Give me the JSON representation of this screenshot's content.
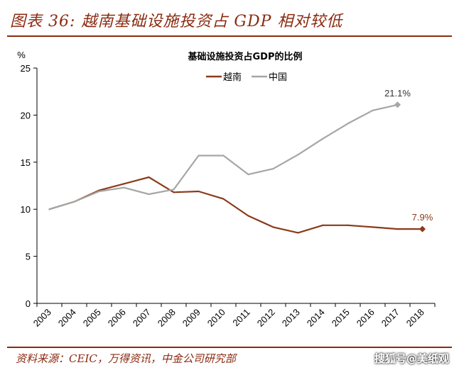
{
  "header": {
    "title": "图表 36: 越南基础设施投资占 GDP 相对较低"
  },
  "footer": {
    "source": "资料来源：CEIC，万得资讯，中金公司研究部",
    "watermark": "搜狐号@美纸观"
  },
  "colors": {
    "vietnam": "#8B3A1A",
    "china": "#A6A6A6",
    "accent": "#8b2a10"
  },
  "chart_data": {
    "type": "line",
    "title": "基础设施投资占GDP的比例",
    "ylabel": "%",
    "xlabel": "",
    "ylim": [
      0,
      25
    ],
    "yticks": [
      0,
      5,
      10,
      15,
      20,
      25
    ],
    "categories": [
      "2003",
      "2004",
      "2005",
      "2006",
      "2007",
      "2008",
      "2009",
      "2010",
      "2011",
      "2012",
      "2013",
      "2014",
      "2015",
      "2016",
      "2017",
      "2018"
    ],
    "legend_position": "top-center",
    "grid": false,
    "series": [
      {
        "name": "越南",
        "color": "#8B3A1A",
        "marker": "diamond-end",
        "x": [
          2003,
          2004,
          2005,
          2006,
          2007,
          2008,
          2009,
          2010,
          2011,
          2012,
          2013,
          2014,
          2015,
          2016,
          2017,
          2018
        ],
        "values": [
          10.0,
          10.8,
          12.0,
          12.7,
          13.4,
          11.8,
          11.9,
          11.1,
          9.3,
          8.1,
          7.5,
          8.3,
          8.3,
          8.1,
          7.9,
          7.9
        ],
        "end_label": "7.9%"
      },
      {
        "name": "中国",
        "color": "#A6A6A6",
        "marker": "diamond-end",
        "x": [
          2003,
          2004,
          2005,
          2006,
          2007,
          2008,
          2009,
          2010,
          2011,
          2012,
          2013,
          2014,
          2015,
          2016,
          2017
        ],
        "values": [
          10.0,
          10.8,
          11.9,
          12.3,
          11.6,
          12.1,
          15.7,
          15.7,
          13.7,
          14.3,
          15.8,
          17.5,
          19.1,
          20.5,
          21.1
        ],
        "end_label": "21.1%"
      }
    ]
  }
}
